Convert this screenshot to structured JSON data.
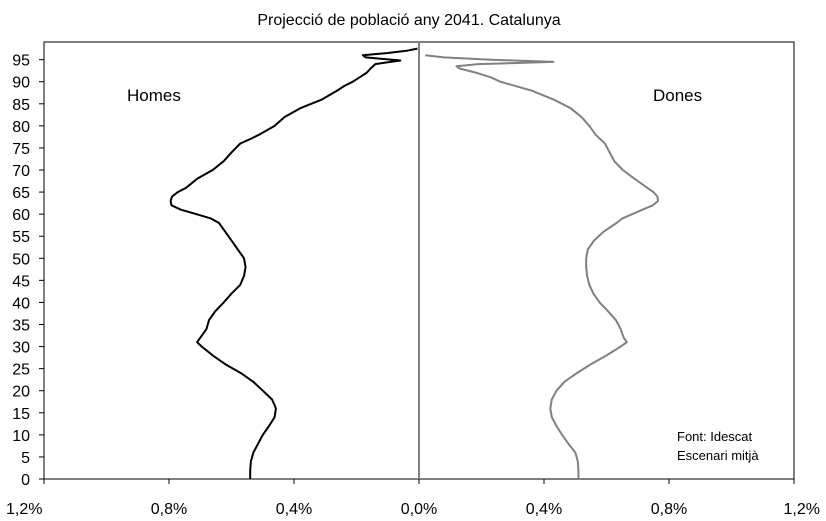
{
  "chart_data": {
    "type": "line",
    "title": "Projecció de població any 2041. Catalunya",
    "xlabel": "",
    "ylabel": "",
    "xlim": [
      -1.2,
      1.2
    ],
    "ylim": [
      0,
      99
    ],
    "x_ticks": [
      -1.2,
      -0.8,
      -0.4,
      0.0,
      0.4,
      0.8,
      1.2
    ],
    "x_tick_labels": [
      "1,2%",
      "0,8%",
      "0,4%",
      "0,0%",
      "0,4%",
      "0,8%",
      "1,2%"
    ],
    "y_ticks": [
      0,
      5,
      10,
      15,
      20,
      25,
      30,
      35,
      40,
      45,
      50,
      55,
      60,
      65,
      70,
      75,
      80,
      85,
      90,
      95
    ],
    "y_tick_labels": [
      "0",
      "5",
      "10",
      "15",
      "20",
      "25",
      "30",
      "35",
      "40",
      "45",
      "50",
      "55",
      "60",
      "65",
      "70",
      "75",
      "80",
      "85",
      "90",
      "95"
    ],
    "grid": false,
    "series": [
      {
        "name": "Homes",
        "color": "#000000",
        "points": [
          [
            0,
            -0.54
          ],
          [
            2,
            -0.54
          ],
          [
            4,
            -0.538
          ],
          [
            6,
            -0.53
          ],
          [
            8,
            -0.515
          ],
          [
            10,
            -0.5
          ],
          [
            12,
            -0.48
          ],
          [
            14,
            -0.462
          ],
          [
            16,
            -0.458
          ],
          [
            18,
            -0.47
          ],
          [
            20,
            -0.5
          ],
          [
            22,
            -0.53
          ],
          [
            24,
            -0.57
          ],
          [
            26,
            -0.62
          ],
          [
            28,
            -0.66
          ],
          [
            30,
            -0.695
          ],
          [
            31,
            -0.71
          ],
          [
            32,
            -0.7
          ],
          [
            34,
            -0.68
          ],
          [
            36,
            -0.672
          ],
          [
            38,
            -0.652
          ],
          [
            40,
            -0.625
          ],
          [
            42,
            -0.6
          ],
          [
            44,
            -0.572
          ],
          [
            46,
            -0.56
          ],
          [
            48,
            -0.555
          ],
          [
            50,
            -0.56
          ],
          [
            52,
            -0.58
          ],
          [
            54,
            -0.6
          ],
          [
            56,
            -0.62
          ],
          [
            58,
            -0.64
          ],
          [
            59,
            -0.665
          ],
          [
            60,
            -0.712
          ],
          [
            61,
            -0.762
          ],
          [
            62,
            -0.792
          ],
          [
            63,
            -0.795
          ],
          [
            64,
            -0.79
          ],
          [
            65,
            -0.772
          ],
          [
            66,
            -0.745
          ],
          [
            68,
            -0.71
          ],
          [
            70,
            -0.66
          ],
          [
            72,
            -0.625
          ],
          [
            74,
            -0.6
          ],
          [
            76,
            -0.572
          ],
          [
            77,
            -0.54
          ],
          [
            78,
            -0.512
          ],
          [
            80,
            -0.462
          ],
          [
            82,
            -0.43
          ],
          [
            84,
            -0.38
          ],
          [
            86,
            -0.31
          ],
          [
            88,
            -0.262
          ],
          [
            89,
            -0.24
          ],
          [
            90,
            -0.212
          ],
          [
            91,
            -0.19
          ],
          [
            92,
            -0.168
          ],
          [
            93,
            -0.155
          ],
          [
            94,
            -0.14
          ],
          [
            94.8,
            -0.06
          ],
          [
            95.5,
            -0.17
          ],
          [
            96,
            -0.18
          ],
          [
            96.5,
            -0.1
          ],
          [
            97,
            -0.04
          ],
          [
            97.5,
            -0.005
          ]
        ]
      },
      {
        "name": "Dones",
        "color": "#808080",
        "points": [
          [
            0,
            0.51
          ],
          [
            2,
            0.51
          ],
          [
            4,
            0.508
          ],
          [
            6,
            0.5
          ],
          [
            8,
            0.478
          ],
          [
            10,
            0.458
          ],
          [
            12,
            0.44
          ],
          [
            14,
            0.425
          ],
          [
            16,
            0.42
          ],
          [
            18,
            0.425
          ],
          [
            20,
            0.44
          ],
          [
            22,
            0.465
          ],
          [
            24,
            0.505
          ],
          [
            26,
            0.55
          ],
          [
            28,
            0.6
          ],
          [
            30,
            0.645
          ],
          [
            31,
            0.665
          ],
          [
            32,
            0.655
          ],
          [
            34,
            0.645
          ],
          [
            36,
            0.63
          ],
          [
            38,
            0.605
          ],
          [
            40,
            0.578
          ],
          [
            42,
            0.558
          ],
          [
            44,
            0.545
          ],
          [
            46,
            0.538
          ],
          [
            48,
            0.535
          ],
          [
            50,
            0.535
          ],
          [
            52,
            0.54
          ],
          [
            54,
            0.56
          ],
          [
            56,
            0.59
          ],
          [
            58,
            0.632
          ],
          [
            59,
            0.65
          ],
          [
            60,
            0.682
          ],
          [
            61,
            0.715
          ],
          [
            62,
            0.748
          ],
          [
            63,
            0.765
          ],
          [
            64,
            0.763
          ],
          [
            65,
            0.75
          ],
          [
            66,
            0.73
          ],
          [
            68,
            0.69
          ],
          [
            70,
            0.652
          ],
          [
            72,
            0.625
          ],
          [
            74,
            0.61
          ],
          [
            76,
            0.595
          ],
          [
            78,
            0.565
          ],
          [
            80,
            0.545
          ],
          [
            82,
            0.52
          ],
          [
            84,
            0.485
          ],
          [
            86,
            0.43
          ],
          [
            88,
            0.36
          ],
          [
            90,
            0.26
          ],
          [
            91,
            0.23
          ],
          [
            92,
            0.185
          ],
          [
            93,
            0.13
          ],
          [
            93.5,
            0.12
          ],
          [
            94,
            0.19
          ],
          [
            94.5,
            0.43
          ],
          [
            95,
            0.23
          ],
          [
            95.5,
            0.08
          ],
          [
            96,
            0.02
          ]
        ]
      }
    ],
    "annotations": {
      "left_label": "Homes",
      "right_label": "Dones",
      "source_line1": "Font: Idescat",
      "source_line2": "Escenari mitjà"
    }
  }
}
